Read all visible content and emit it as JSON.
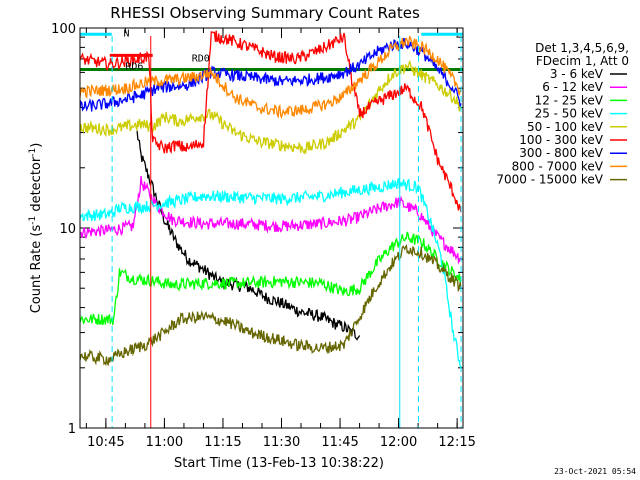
{
  "chart_data": {
    "type": "line",
    "title": "RHESSI Observing Summary Count Rates",
    "xlabel": "Start Time (13-Feb-13 10:38:22)",
    "ylabel": "Count Rate (s",
    "ylabel_sup": "-1",
    "ylabel_tail": " detector",
    "ylabel_close": ")",
    "footer": "23-Oct-2021 05:54",
    "x_range_min": [
      38.37,
      136.5
    ],
    "xlim": [
      38.37,
      136.5
    ],
    "ylim": [
      1,
      100
    ],
    "yscale": "log",
    "x_ticks": [
      {
        "value": 45,
        "label": "10:45"
      },
      {
        "value": 60,
        "label": "11:00"
      },
      {
        "value": 75,
        "label": "11:15"
      },
      {
        "value": 90,
        "label": "11:30"
      },
      {
        "value": 105,
        "label": "11:45"
      },
      {
        "value": 120,
        "label": "12:00"
      },
      {
        "value": 135,
        "label": "12:15"
      }
    ],
    "y_ticks": [
      {
        "value": 1,
        "label": "1"
      },
      {
        "value": 10,
        "label": "10"
      },
      {
        "value": 100,
        "label": "100"
      }
    ],
    "legend": {
      "placement": "right",
      "header": [
        "Det 1,3,4,5,6,9,",
        "FDecim 1, Att 0"
      ]
    },
    "annotations": [
      {
        "text": "N",
        "x": 49.5,
        "y": 95,
        "color": "#00e5ff"
      },
      {
        "text": "RD6",
        "x": 50,
        "y": 65,
        "color": "#007a00"
      },
      {
        "text": "RD0",
        "x": 67,
        "y": 71,
        "color": "#007a00"
      }
    ],
    "segments": [
      {
        "name": "night",
        "color": "#00e5ff",
        "x": [
          38.37,
          46.5
        ],
        "y": 93
      },
      {
        "name": "night",
        "color": "#00e5ff",
        "x": [
          125.8,
          136.5
        ],
        "y": 93
      },
      {
        "name": "rd-red",
        "color": "#ff0000",
        "x": [
          46.0,
          57.0
        ],
        "y": 73
      },
      {
        "name": "rd-green",
        "color": "#007a00",
        "x": [
          38.37,
          136.5
        ],
        "y": 62
      }
    ],
    "vlines": [
      {
        "x": 46.6,
        "color": "#00e5ff",
        "dash": true
      },
      {
        "x": 56.5,
        "color": "#ff0000",
        "dash": false
      },
      {
        "x": 120.3,
        "color": "#00e5ff",
        "dash": false
      },
      {
        "x": 125.1,
        "color": "#00e5ff",
        "dash": true
      },
      {
        "x": 136.0,
        "color": "#00e5ff",
        "dash": true
      }
    ],
    "series": [
      {
        "name": "3 - 6 keV",
        "color": "#000000",
        "x": [
          53,
          54,
          56,
          58,
          60,
          63,
          66,
          70,
          74,
          78,
          82,
          86,
          90,
          95,
          100,
          104,
          106,
          108,
          110
        ],
        "y": [
          30,
          23,
          18,
          14,
          11,
          8.5,
          7,
          6.2,
          5.4,
          5.2,
          5.0,
          4.5,
          4.2,
          3.8,
          3.6,
          3.3,
          3.2,
          3.0,
          2.9
        ]
      },
      {
        "name": "6 - 12 keV",
        "color": "#ff00ff",
        "x": [
          38.4,
          47,
          52,
          54,
          56,
          58,
          60,
          62,
          70,
          80,
          90,
          100,
          108,
          115,
          120,
          125,
          130,
          136
        ],
        "y": [
          9.5,
          9.8,
          10.2,
          17,
          15,
          13,
          12,
          11,
          10.5,
          10.5,
          10.2,
          10.5,
          11,
          12.5,
          13.5,
          12,
          9,
          7
        ]
      },
      {
        "name": "12 - 25 keV",
        "color": "#00ff00",
        "x": [
          38.4,
          47,
          48.5,
          52,
          58,
          62,
          70,
          80,
          90,
          100,
          106,
          110,
          114,
          118,
          122,
          126,
          130,
          136
        ],
        "y": [
          3.5,
          3.5,
          6.0,
          5.6,
          5.4,
          5.2,
          5.3,
          5.3,
          5.4,
          5.3,
          4.8,
          5.0,
          6.5,
          8.0,
          9.0,
          8.5,
          7.0,
          5.5
        ]
      },
      {
        "name": "25 - 50 keV",
        "color": "#00ffff",
        "x": [
          38.4,
          46,
          48.5,
          55,
          62,
          70,
          80,
          90,
          100,
          105,
          110,
          115,
          120,
          125,
          128,
          131,
          134,
          136
        ],
        "y": [
          11.5,
          11.7,
          12.6,
          12.8,
          13.5,
          14.5,
          14.2,
          14.0,
          14.4,
          15.0,
          15.5,
          16,
          16.8,
          16.0,
          11,
          7,
          3,
          2
        ]
      },
      {
        "name": "50 - 100 keV",
        "color": "#cccc00",
        "x": [
          38.4,
          46,
          50,
          54,
          57,
          60,
          64,
          68,
          72,
          78,
          84,
          90,
          96,
          102,
          106,
          110,
          114,
          118,
          122,
          126,
          130,
          134,
          136
        ],
        "y": [
          32,
          31,
          32,
          33,
          32,
          36,
          34,
          36,
          37,
          30,
          27,
          26,
          25,
          27,
          31,
          35,
          46,
          58,
          65,
          58,
          52,
          45,
          40
        ]
      },
      {
        "name": "100 - 300 keV",
        "color": "#ff0000",
        "x": [
          38.4,
          42,
          46,
          50,
          56,
          57,
          60,
          63,
          66,
          70,
          72,
          76,
          82,
          88,
          94,
          100,
          106,
          108,
          110,
          114,
          118,
          122,
          126,
          130,
          134,
          136
        ],
        "y": [
          70,
          68,
          66,
          68,
          72,
          27,
          25,
          26,
          25,
          27,
          92,
          88,
          80,
          72,
          70,
          78,
          90,
          55,
          37,
          42,
          46,
          50,
          40,
          22,
          15,
          12
        ]
      },
      {
        "name": "300 - 800 keV",
        "color": "#0000ff",
        "x": [
          38.4,
          46,
          50,
          54,
          58,
          62,
          66,
          72,
          78,
          84,
          90,
          96,
          102,
          106,
          110,
          114,
          118,
          122,
          126,
          130,
          134,
          136
        ],
        "y": [
          40,
          42,
          44,
          46,
          50,
          51,
          52,
          60,
          58,
          56,
          54,
          55,
          57,
          60,
          65,
          75,
          82,
          84,
          76,
          62,
          50,
          42
        ]
      },
      {
        "name": "800 - 7000 keV",
        "color": "#ff8800",
        "x": [
          38.4,
          46,
          50,
          56,
          62,
          68,
          72,
          78,
          84,
          90,
          96,
          102,
          106,
          110,
          114,
          118,
          122,
          126,
          130,
          134,
          136
        ],
        "y": [
          48,
          49,
          50,
          54,
          55,
          57,
          60,
          45,
          40,
          38,
          39,
          42,
          46,
          55,
          65,
          78,
          86,
          80,
          70,
          55,
          48
        ]
      },
      {
        "name": "7000 - 15000 keV",
        "color": "#666600",
        "x": [
          38.4,
          46,
          50,
          55,
          60,
          64,
          70,
          76,
          82,
          88,
          94,
          100,
          106,
          110,
          114,
          118,
          122,
          126,
          130,
          134,
          136
        ],
        "y": [
          2.3,
          2.2,
          2.4,
          2.6,
          3.0,
          3.5,
          3.6,
          3.4,
          3.0,
          2.8,
          2.6,
          2.5,
          2.6,
          3.6,
          5.0,
          6.5,
          8.0,
          7.5,
          6.5,
          5.5,
          5.0
        ]
      }
    ]
  }
}
